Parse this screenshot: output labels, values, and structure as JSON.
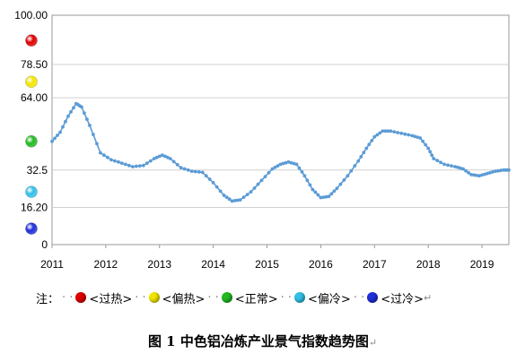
{
  "chart_data": {
    "type": "line",
    "title": "",
    "xlabel": "",
    "ylabel": "",
    "x_tick_labels": [
      "2011",
      "2012",
      "2013",
      "2014",
      "2015",
      "2016",
      "2017",
      "2018",
      "2019"
    ],
    "y_tick_labels": [
      "100.00",
      "78.50",
      "64.00",
      "32.5",
      "16.20",
      "0"
    ],
    "y_tick_values": [
      100,
      78.5,
      64,
      32.5,
      16.2,
      0
    ],
    "ylim": [
      0,
      100
    ],
    "xlim": [
      2011.0,
      2019.5
    ],
    "grid": "horizontal lines at zone boundaries",
    "line_color": "#5b9bd5",
    "series": [
      {
        "points": [
          [
            2011.0,
            45.0
          ],
          [
            2011.15,
            49.0
          ],
          [
            2011.3,
            56.0
          ],
          [
            2011.45,
            61.5
          ],
          [
            2011.55,
            60.0
          ],
          [
            2011.7,
            52.0
          ],
          [
            2011.9,
            40.0
          ],
          [
            2012.1,
            37.0
          ],
          [
            2012.3,
            35.5
          ],
          [
            2012.5,
            34.0
          ],
          [
            2012.7,
            34.5
          ],
          [
            2012.9,
            37.5
          ],
          [
            2013.05,
            39.0
          ],
          [
            2013.2,
            37.5
          ],
          [
            2013.4,
            33.5
          ],
          [
            2013.6,
            32.0
          ],
          [
            2013.8,
            31.5
          ],
          [
            2014.0,
            27.0
          ],
          [
            2014.2,
            21.5
          ],
          [
            2014.35,
            19.0
          ],
          [
            2014.5,
            19.5
          ],
          [
            2014.7,
            23.0
          ],
          [
            2014.9,
            28.0
          ],
          [
            2015.1,
            33.0
          ],
          [
            2015.25,
            35.0
          ],
          [
            2015.4,
            36.0
          ],
          [
            2015.55,
            35.0
          ],
          [
            2015.7,
            30.0
          ],
          [
            2015.85,
            24.0
          ],
          [
            2016.0,
            20.5
          ],
          [
            2016.15,
            21.0
          ],
          [
            2016.3,
            24.5
          ],
          [
            2016.5,
            30.0
          ],
          [
            2016.7,
            36.5
          ],
          [
            2016.85,
            42.0
          ],
          [
            2017.0,
            47.0
          ],
          [
            2017.15,
            49.5
          ],
          [
            2017.3,
            49.5
          ],
          [
            2017.5,
            48.5
          ],
          [
            2017.7,
            47.5
          ],
          [
            2017.85,
            46.5
          ],
          [
            2018.0,
            42.0
          ],
          [
            2018.1,
            37.5
          ],
          [
            2018.3,
            35.0
          ],
          [
            2018.5,
            34.0
          ],
          [
            2018.65,
            33.0
          ],
          [
            2018.8,
            30.5
          ],
          [
            2018.95,
            30.0
          ],
          [
            2019.1,
            31.0
          ],
          [
            2019.25,
            32.0
          ],
          [
            2019.4,
            32.5
          ],
          [
            2019.5,
            32.5
          ]
        ]
      }
    ],
    "zone_markers": [
      {
        "value": 89,
        "color": "#e00000",
        "name": "过热"
      },
      {
        "value": 71,
        "color": "#f2e600",
        "name": "偏热"
      },
      {
        "value": 45,
        "color": "#22bb22",
        "name": "正常"
      },
      {
        "value": 23,
        "color": "#33c0e8",
        "name": "偏冷"
      },
      {
        "value": 7,
        "color": "#1f2ed9",
        "name": "过冷"
      }
    ]
  },
  "legend": {
    "prefix": "注：",
    "items": [
      {
        "label": "<过热>",
        "color": "#e00000"
      },
      {
        "label": "<偏热>",
        "color": "#f2e600"
      },
      {
        "label": "<正常>",
        "color": "#22bb22"
      },
      {
        "label": "<偏冷>",
        "color": "#33c0e8"
      },
      {
        "label": "<过冷>",
        "color": "#1f2ed9"
      }
    ],
    "separator": "·  ·",
    "return_mark": "↵"
  },
  "caption": {
    "text": "图 1 中色铝冶炼产业景气指数趋势图",
    "return_mark": "↵"
  }
}
